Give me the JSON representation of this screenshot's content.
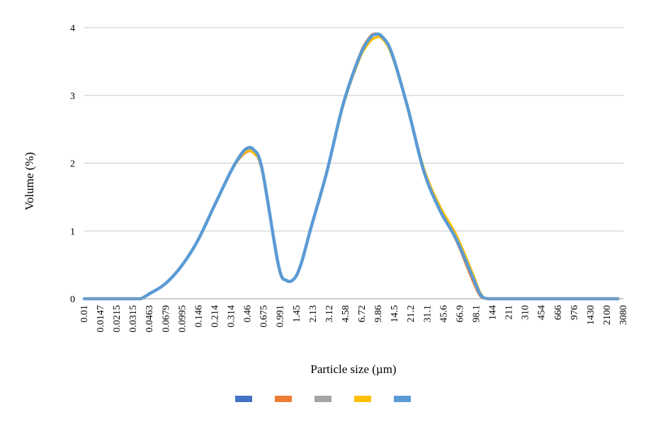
{
  "chart_data": {
    "type": "line",
    "xlabel": "Particle size (µm)",
    "ylabel": "Volume  (%)",
    "x_scale": "log",
    "xlim": [
      0.01,
      3500
    ],
    "ylim": [
      0,
      4
    ],
    "y_ticks": [
      0,
      1,
      2,
      3,
      4
    ],
    "x_tick_labels": [
      "0.01",
      "0.0147",
      "0.0215",
      "0.0315",
      "0.0463",
      "0.0679",
      "0.0995",
      "0.146",
      "0.214",
      "0.314",
      "0.46",
      "0.675",
      "0.991",
      "1.45",
      "2.13",
      "3.12",
      "4.58",
      "6.72",
      "9.86",
      "14.5",
      "21.2",
      "31.1",
      "45.6",
      "66.9",
      "98.1",
      "144",
      "211",
      "310",
      "454",
      "666",
      "976",
      "1430",
      "2100",
      "3080"
    ],
    "grid": "horizontal",
    "legend": "bottom",
    "x": [
      0.01,
      0.0147,
      0.0215,
      0.0315,
      0.038,
      0.0463,
      0.0679,
      0.0995,
      0.146,
      0.214,
      0.314,
      0.38,
      0.46,
      0.55,
      0.675,
      0.991,
      1.2,
      1.45,
      1.7,
      2.13,
      3.12,
      4.58,
      6.72,
      8.5,
      9.86,
      11.5,
      14.5,
      21.2,
      31.1,
      45.6,
      66.9,
      98.1,
      120,
      144,
      211,
      310,
      454,
      666,
      976,
      1430,
      2100,
      3080
    ],
    "series": [
      {
        "color": "#4472C4",
        "values": [
          0,
          0,
          0,
          0,
          0,
          0.07,
          0.22,
          0.48,
          0.85,
          1.35,
          1.85,
          2.05,
          2.2,
          2.18,
          1.9,
          0.5,
          0.27,
          0.3,
          0.52,
          1.03,
          1.87,
          2.85,
          3.55,
          3.82,
          3.9,
          3.87,
          3.63,
          2.82,
          1.88,
          1.3,
          0.88,
          0.33,
          0.05,
          0,
          0,
          0,
          0,
          0,
          0,
          0,
          0,
          0
        ]
      },
      {
        "color": "#ED7D31",
        "values": [
          0,
          0,
          0,
          0,
          0,
          0.07,
          0.22,
          0.48,
          0.85,
          1.35,
          1.85,
          2.04,
          2.16,
          2.15,
          1.88,
          0.5,
          0.27,
          0.3,
          0.52,
          1.04,
          1.88,
          2.87,
          3.58,
          3.85,
          3.91,
          3.87,
          3.64,
          2.83,
          1.9,
          1.32,
          0.86,
          0.28,
          0.03,
          0,
          0,
          0,
          0,
          0,
          0,
          0,
          0,
          0
        ]
      },
      {
        "color": "#A5A5A5",
        "values": [
          0,
          0,
          0,
          0,
          0,
          0.07,
          0.22,
          0.48,
          0.85,
          1.35,
          1.85,
          2.05,
          2.18,
          2.16,
          1.89,
          0.5,
          0.27,
          0.3,
          0.52,
          1.03,
          1.87,
          2.86,
          3.56,
          3.83,
          3.9,
          3.86,
          3.62,
          2.82,
          1.9,
          1.34,
          0.9,
          0.34,
          0.05,
          0,
          0,
          0,
          0,
          0,
          0,
          0,
          0,
          0
        ]
      },
      {
        "color": "#FFC000",
        "values": [
          0,
          0,
          0,
          0,
          0,
          0.07,
          0.22,
          0.48,
          0.85,
          1.35,
          1.85,
          2.05,
          2.17,
          2.15,
          1.89,
          0.5,
          0.27,
          0.3,
          0.52,
          1.03,
          1.86,
          2.84,
          3.53,
          3.78,
          3.85,
          3.84,
          3.6,
          2.82,
          1.92,
          1.36,
          0.94,
          0.38,
          0.07,
          0,
          0,
          0,
          0,
          0,
          0,
          0,
          0,
          0
        ]
      },
      {
        "color": "#5B9BD5",
        "values": [
          0,
          0,
          0,
          0,
          0,
          0.07,
          0.22,
          0.48,
          0.85,
          1.35,
          1.85,
          2.06,
          2.21,
          2.2,
          1.91,
          0.5,
          0.27,
          0.3,
          0.52,
          1.03,
          1.87,
          2.86,
          3.56,
          3.83,
          3.9,
          3.87,
          3.63,
          2.82,
          1.88,
          1.3,
          0.88,
          0.33,
          0.05,
          0,
          0,
          0,
          0,
          0,
          0,
          0,
          0,
          0
        ]
      }
    ]
  }
}
